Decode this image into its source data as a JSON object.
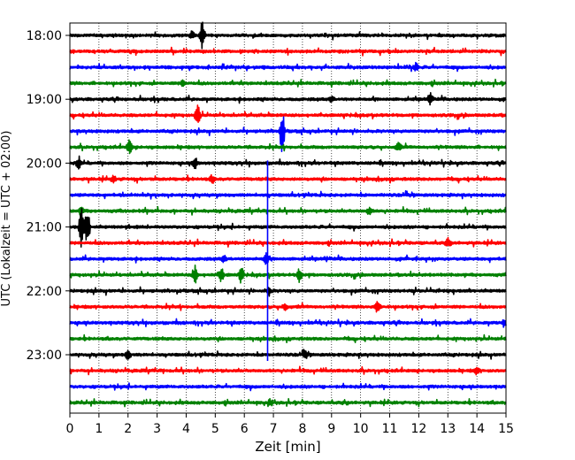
{
  "chart_data": {
    "type": "line",
    "title": "",
    "xlabel": "Zeit  [min]",
    "ylabel": "UTC (Lokalzeit = UTC + 02:00)",
    "xlim": [
      0,
      15
    ],
    "x_ticks": [
      0,
      1,
      2,
      3,
      4,
      5,
      6,
      7,
      8,
      9,
      10,
      11,
      12,
      13,
      14,
      15
    ],
    "x_tick_labels": [
      "0",
      "1",
      "2",
      "3",
      "4",
      "5",
      "6",
      "7",
      "8",
      "9",
      "10",
      "11",
      "12",
      "13",
      "14",
      "15"
    ],
    "y_tick_labels": [
      "18:00",
      "19:00",
      "20:00",
      "21:00",
      "22:00",
      "23:00"
    ],
    "trace_start_times": [
      "18:00",
      "18:15",
      "18:30",
      "18:45",
      "19:00",
      "19:15",
      "19:30",
      "19:45",
      "20:00",
      "20:15",
      "20:30",
      "20:45",
      "21:00",
      "21:15",
      "21:30",
      "21:45",
      "22:00",
      "22:15",
      "22:30",
      "22:45",
      "23:00",
      "23:15",
      "23:30",
      "23:45"
    ],
    "colors": [
      "#000000",
      "#ff0000",
      "#0000ff",
      "#008000"
    ],
    "grid": "vertical dotted",
    "events": [
      {
        "trace": 0,
        "x": 4.55,
        "amp": 2.0
      },
      {
        "trace": 0,
        "x": 4.2,
        "amp": 0.5
      },
      {
        "trace": 2,
        "x": 11.9,
        "amp": 0.6
      },
      {
        "trace": 3,
        "x": 3.9,
        "amp": 0.45
      },
      {
        "trace": 4,
        "x": 12.4,
        "amp": 0.8
      },
      {
        "trace": 4,
        "x": 9.0,
        "amp": 0.4
      },
      {
        "trace": 5,
        "x": 4.4,
        "amp": 1.6
      },
      {
        "trace": 6,
        "x": 7.3,
        "amp": 3.2
      },
      {
        "trace": 7,
        "x": 2.05,
        "amp": 1.0
      },
      {
        "trace": 7,
        "x": 11.3,
        "amp": 0.6
      },
      {
        "trace": 8,
        "x": 0.3,
        "amp": 0.8
      },
      {
        "trace": 8,
        "x": 4.3,
        "amp": 0.9
      },
      {
        "trace": 9,
        "x": 4.9,
        "amp": 0.5
      },
      {
        "trace": 9,
        "x": 1.5,
        "amp": 0.4
      },
      {
        "trace": 11,
        "x": 0.4,
        "amp": 0.5
      },
      {
        "trace": 11,
        "x": 10.3,
        "amp": 0.6
      },
      {
        "trace": 12,
        "x": 0.4,
        "amp": 3.0
      },
      {
        "trace": 12,
        "x": 0.6,
        "amp": 2.6
      },
      {
        "trace": 13,
        "x": 13.0,
        "amp": 0.5
      },
      {
        "trace": 14,
        "x": 6.75,
        "amp": 0.8
      },
      {
        "trace": 14,
        "x": 5.3,
        "amp": 0.5
      },
      {
        "trace": 15,
        "x": 4.3,
        "amp": 1.4
      },
      {
        "trace": 15,
        "x": 5.2,
        "amp": 1.2
      },
      {
        "trace": 15,
        "x": 5.9,
        "amp": 1.1
      },
      {
        "trace": 15,
        "x": 7.9,
        "amp": 1.0
      },
      {
        "trace": 16,
        "x": 6.85,
        "amp": 0.6
      },
      {
        "trace": 17,
        "x": 10.6,
        "amp": 1.1
      },
      {
        "trace": 17,
        "x": 7.4,
        "amp": 0.6
      },
      {
        "trace": 18,
        "x": 14.95,
        "amp": 0.6
      },
      {
        "trace": 20,
        "x": 2.0,
        "amp": 0.7
      },
      {
        "trace": 20,
        "x": 8.1,
        "amp": 0.5
      },
      {
        "trace": 21,
        "x": 14.0,
        "amp": 0.5
      },
      {
        "trace": 23,
        "x": 6.9,
        "amp": 0.4
      }
    ],
    "long_event": {
      "x": 6.8,
      "from_trace": 8,
      "to_trace": 20
    }
  }
}
